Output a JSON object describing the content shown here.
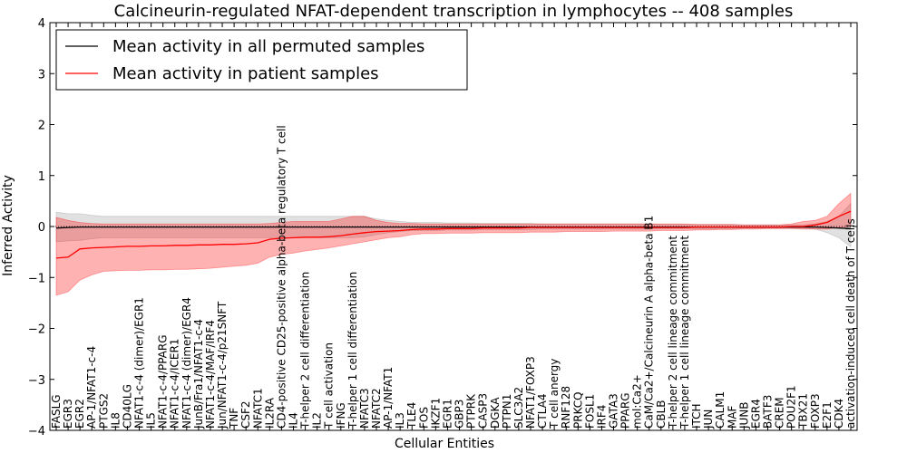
{
  "chart_data": {
    "type": "line",
    "title": "Calcineurin-regulated NFAT-dependent transcription in lymphocytes -- 408 samples",
    "xlabel": "Cellular Entities",
    "ylabel": "Inferred Activity",
    "ylim": [
      -4,
      4
    ],
    "yticks": [
      "−4",
      "−3",
      "−2",
      "−1",
      "0",
      "1",
      "2",
      "3",
      "4"
    ],
    "legend_position": "top-left",
    "grid": false,
    "categories": [
      "FASLG",
      "EGR3",
      "EGR2",
      "AP-1/NFAT1-c-4",
      "PTGS2",
      "IL8",
      "CD40LG",
      "NFAT1-c-4 (dimer)/EGR1",
      "IL5",
      "NFAT1-c-4/PPARG",
      "NFAT1-c-4/ICER1",
      "NFAT1-c-4 (dimer)/EGR4",
      "JunB/Fra1/NFAT1-c-4",
      "NFAT1-c-4/MAF/IRF4",
      "Jun/NFAT1-c-4/p21SNFT",
      "TNF",
      "CSF2",
      "NFATC1",
      "IL2RA",
      "CD4-positive CD25-positive alpha-beta regulatory T cell",
      "IL4",
      "T-helper 2 cell differentiation",
      "IL2",
      "T cell activation",
      "IFNG",
      "T-helper 1 cell differentiation",
      "NFATC3",
      "NFATC2",
      "AP-1/NFAT1",
      "IL3",
      "TLE4",
      "FOS",
      "IKZF1",
      "EGR1",
      "GBP3",
      "PTPRK",
      "CASP3",
      "DGKA",
      "PTPN1",
      "SLC3A2",
      "NFAT1/FOXP3",
      "CTLA4",
      "T cell anergy",
      "RNF128",
      "PRKCQ",
      "FOSL1",
      "IRF4",
      "GATA3",
      "PPARG",
      "mol:Ca2+",
      "CaM/Ca2+/Calcineurin A alpha-beta B1",
      "CBLB",
      "T-helper 2 cell lineage commitment",
      "T-helper 1 cell lineage commitment",
      "ITCH",
      "JUN",
      "CALM1",
      "MAF",
      "JUNB",
      "EGR4",
      "BATF3",
      "CREM",
      "POU2F1",
      "TBX21",
      "FOXP3",
      "E2F1",
      "CDK4",
      "activation-induced cell death of T cells"
    ],
    "series": [
      {
        "name": "Mean activity in all permuted samples",
        "color": "#000000",
        "band_color": "#888888",
        "values": [
          -0.03,
          -0.02,
          -0.01,
          -0.01,
          -0.01,
          -0.01,
          -0.01,
          -0.01,
          -0.01,
          -0.01,
          -0.01,
          -0.01,
          -0.01,
          -0.01,
          -0.01,
          -0.01,
          -0.01,
          -0.01,
          -0.01,
          -0.01,
          -0.01,
          -0.01,
          -0.01,
          -0.01,
          -0.01,
          -0.01,
          -0.01,
          -0.01,
          -0.01,
          -0.01,
          -0.01,
          -0.01,
          -0.01,
          -0.01,
          -0.01,
          -0.01,
          -0.01,
          -0.01,
          -0.01,
          -0.01,
          -0.01,
          -0.01,
          -0.01,
          -0.01,
          -0.01,
          -0.01,
          -0.01,
          -0.01,
          -0.01,
          -0.01,
          -0.01,
          -0.01,
          -0.01,
          -0.01,
          -0.01,
          -0.01,
          -0.01,
          -0.01,
          -0.01,
          -0.01,
          -0.01,
          -0.01,
          -0.01,
          -0.01,
          -0.01,
          -0.02,
          -0.03,
          -0.04
        ],
        "upper": [
          0.28,
          0.25,
          0.25,
          0.22,
          0.2,
          0.2,
          0.2,
          0.2,
          0.2,
          0.2,
          0.2,
          0.2,
          0.2,
          0.2,
          0.2,
          0.2,
          0.2,
          0.2,
          0.2,
          0.2,
          0.2,
          0.2,
          0.2,
          0.2,
          0.2,
          0.2,
          0.2,
          0.15,
          0.12,
          0.1,
          0.08,
          0.08,
          0.08,
          0.07,
          0.07,
          0.07,
          0.06,
          0.06,
          0.06,
          0.06,
          0.06,
          0.05,
          0.05,
          0.05,
          0.05,
          0.05,
          0.05,
          0.05,
          0.05,
          0.05,
          0.05,
          0.04,
          0.04,
          0.04,
          0.04,
          0.04,
          0.04,
          0.04,
          0.03,
          0.03,
          0.03,
          0.03,
          0.03,
          0.03,
          0.05,
          0.1,
          0.2,
          0.45
        ],
        "lower": [
          -0.3,
          -0.28,
          -0.27,
          -0.24,
          -0.22,
          -0.22,
          -0.22,
          -0.22,
          -0.22,
          -0.22,
          -0.22,
          -0.22,
          -0.22,
          -0.22,
          -0.22,
          -0.22,
          -0.22,
          -0.22,
          -0.22,
          -0.22,
          -0.22,
          -0.22,
          -0.22,
          -0.22,
          -0.22,
          -0.22,
          -0.2,
          -0.16,
          -0.12,
          -0.1,
          -0.08,
          -0.08,
          -0.08,
          -0.07,
          -0.07,
          -0.07,
          -0.06,
          -0.06,
          -0.06,
          -0.06,
          -0.06,
          -0.05,
          -0.05,
          -0.05,
          -0.05,
          -0.05,
          -0.05,
          -0.05,
          -0.05,
          -0.05,
          -0.05,
          -0.04,
          -0.04,
          -0.04,
          -0.04,
          -0.04,
          -0.04,
          -0.04,
          -0.03,
          -0.03,
          -0.03,
          -0.03,
          -0.03,
          -0.03,
          -0.05,
          -0.12,
          -0.22,
          -0.4
        ]
      },
      {
        "name": "Mean activity in patient samples",
        "color": "#ff0000",
        "band_color": "#ff0000",
        "values": [
          -0.62,
          -0.6,
          -0.44,
          -0.42,
          -0.41,
          -0.4,
          -0.39,
          -0.39,
          -0.38,
          -0.38,
          -0.37,
          -0.37,
          -0.36,
          -0.36,
          -0.35,
          -0.35,
          -0.34,
          -0.32,
          -0.25,
          -0.23,
          -0.22,
          -0.21,
          -0.21,
          -0.2,
          -0.18,
          -0.15,
          -0.12,
          -0.1,
          -0.09,
          -0.08,
          -0.06,
          -0.05,
          -0.05,
          -0.04,
          -0.04,
          -0.04,
          -0.03,
          -0.03,
          -0.03,
          -0.03,
          -0.02,
          -0.02,
          -0.02,
          -0.02,
          -0.02,
          -0.02,
          -0.02,
          -0.02,
          -0.02,
          -0.02,
          -0.02,
          -0.02,
          -0.02,
          -0.02,
          -0.01,
          -0.01,
          -0.01,
          -0.01,
          -0.01,
          -0.01,
          -0.01,
          -0.01,
          0.0,
          0.0,
          0.03,
          0.08,
          0.2,
          0.3
        ],
        "upper": [
          0.18,
          0.12,
          0.08,
          0.06,
          0.05,
          0.05,
          0.05,
          0.05,
          0.05,
          0.05,
          0.05,
          0.05,
          0.05,
          0.05,
          0.05,
          0.05,
          0.05,
          0.05,
          0.06,
          0.08,
          0.1,
          0.1,
          0.1,
          0.1,
          0.15,
          0.2,
          0.2,
          0.12,
          0.08,
          0.06,
          0.06,
          0.05,
          0.05,
          0.05,
          0.05,
          0.05,
          0.05,
          0.05,
          0.05,
          0.05,
          0.05,
          0.05,
          0.05,
          0.05,
          0.05,
          0.05,
          0.05,
          0.05,
          0.05,
          0.05,
          0.05,
          0.05,
          0.05,
          0.05,
          0.04,
          0.04,
          0.04,
          0.04,
          0.03,
          0.03,
          0.03,
          0.03,
          0.05,
          0.1,
          0.12,
          0.2,
          0.45,
          0.65
        ],
        "lower": [
          -1.35,
          -1.28,
          -1.05,
          -0.95,
          -0.88,
          -0.87,
          -0.86,
          -0.86,
          -0.85,
          -0.85,
          -0.84,
          -0.84,
          -0.83,
          -0.82,
          -0.8,
          -0.78,
          -0.76,
          -0.72,
          -0.6,
          -0.55,
          -0.52,
          -0.48,
          -0.45,
          -0.42,
          -0.38,
          -0.34,
          -0.3,
          -0.26,
          -0.22,
          -0.2,
          -0.16,
          -0.14,
          -0.14,
          -0.13,
          -0.13,
          -0.13,
          -0.12,
          -0.12,
          -0.12,
          -0.12,
          -0.11,
          -0.11,
          -0.11,
          -0.1,
          -0.1,
          -0.1,
          -0.1,
          -0.09,
          -0.09,
          -0.09,
          -0.09,
          -0.08,
          -0.08,
          -0.08,
          -0.07,
          -0.07,
          -0.06,
          -0.06,
          -0.05,
          -0.05,
          -0.04,
          -0.04,
          -0.04,
          -0.05,
          -0.05,
          -0.05,
          -0.02,
          0.0
        ]
      }
    ]
  }
}
